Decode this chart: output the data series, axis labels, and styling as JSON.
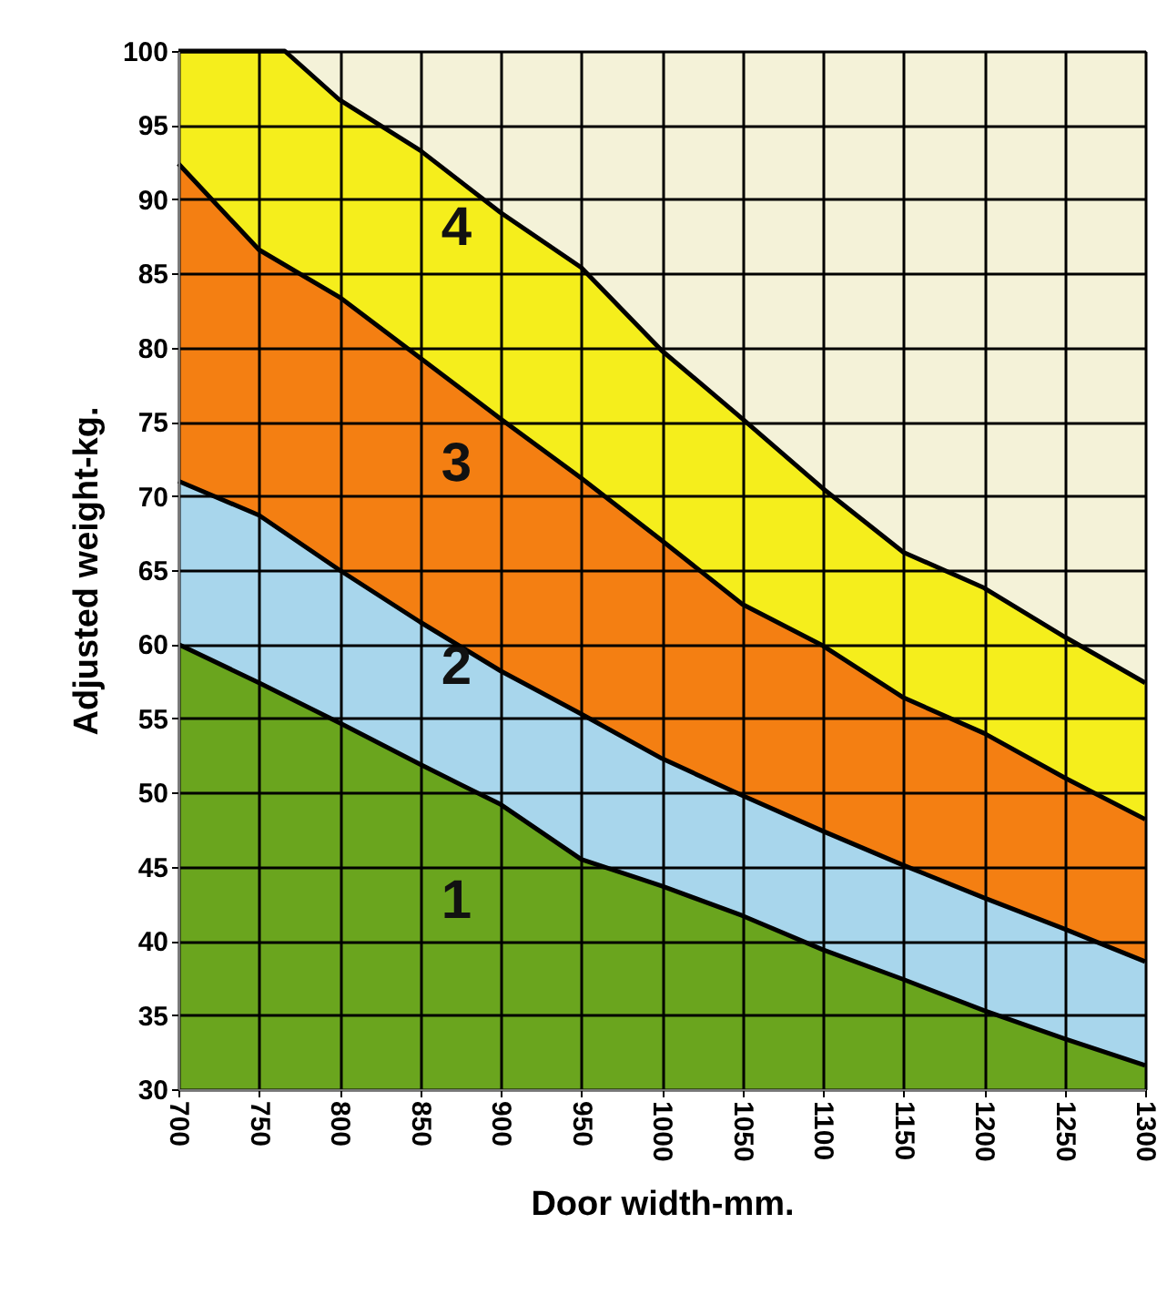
{
  "chart_data": {
    "type": "area",
    "xlabel": "Door width-mm.",
    "ylabel": "Adjusted weight-kg.",
    "x": [
      700,
      750,
      800,
      850,
      900,
      950,
      1000,
      1050,
      1100,
      1150,
      1200,
      1250,
      1300
    ],
    "series": [
      {
        "name": "1",
        "color": "#6aa51e",
        "values": [
          60,
          57.4,
          54.7,
          51.9,
          49.2,
          45.5,
          43.7,
          41.7,
          39.4,
          37.4,
          35.3,
          33.4,
          31.6
        ]
      },
      {
        "name": "2",
        "color": "#a8d6ec",
        "values": [
          71,
          68.7,
          65,
          61.5,
          58.2,
          55.3,
          52.3,
          49.8,
          47.4,
          45.1,
          42.9,
          40.8,
          38.6
        ]
      },
      {
        "name": "3",
        "color": "#f47f12",
        "values": [
          92.4,
          86.6,
          83.4,
          79.3,
          75.2,
          71.2,
          67,
          62.7,
          59.9,
          56.4,
          54,
          51,
          48.2
        ]
      },
      {
        "name": "4",
        "color": "#f5ee1c",
        "x": [
          700,
          766,
          800,
          850,
          900,
          950,
          1000,
          1050,
          1100,
          1150,
          1200,
          1250,
          1300
        ],
        "values": [
          100,
          100,
          96.7,
          93.3,
          89.1,
          85.4,
          79.8,
          75.2,
          70.5,
          66.2,
          63.8,
          60.5,
          57.4
        ]
      }
    ],
    "xlim": [
      700,
      1300
    ],
    "xticks": [
      700,
      750,
      800,
      850,
      900,
      950,
      1000,
      1050,
      1100,
      1150,
      1200,
      1250,
      1300
    ],
    "ylim": [
      30,
      100
    ],
    "yticks": [
      30,
      35,
      40,
      45,
      50,
      55,
      60,
      65,
      70,
      75,
      80,
      85,
      90,
      95,
      100
    ],
    "grid": true
  }
}
